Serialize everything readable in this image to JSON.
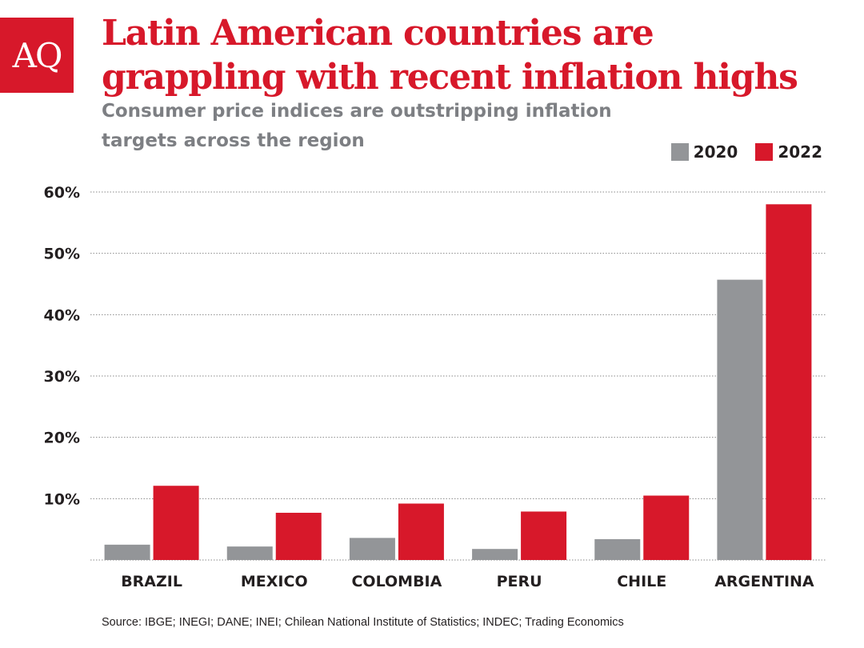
{
  "logo": {
    "text": "AQ"
  },
  "title": "Latin American countries are grappling with recent inflation highs",
  "subtitle": "Consumer price indices are outstripping inflation targets across the region",
  "source": "Source: IBGE; INEGI; DANE; INEI; Chilean National Institute of Statistics; INDEC; Trading Economics",
  "colors": {
    "series_2020": "#939598",
    "series_2022": "#d7182a",
    "brand": "#d7182a"
  },
  "chart_data": {
    "type": "bar",
    "title": "Latin American countries are grappling with recent inflation highs",
    "xlabel": "",
    "ylabel": "",
    "categories": [
      "BRAZIL",
      "MEXICO",
      "COLOMBIA",
      "PERU",
      "CHILE",
      "ARGENTINA"
    ],
    "series": [
      {
        "name": "2020",
        "values": [
          2.5,
          2.2,
          3.6,
          1.8,
          3.4,
          45.7
        ],
        "color": "#939598"
      },
      {
        "name": "2022",
        "values": [
          12.1,
          7.7,
          9.2,
          7.9,
          10.5,
          58.0
        ],
        "color": "#d7182a"
      }
    ],
    "ylim": [
      0,
      60
    ],
    "yticks": [
      10,
      20,
      30,
      40,
      50,
      60
    ],
    "ytick_labels": [
      "10%",
      "20%",
      "30%",
      "40%",
      "50%",
      "60%"
    ],
    "grid": true,
    "legend": "top-right"
  }
}
